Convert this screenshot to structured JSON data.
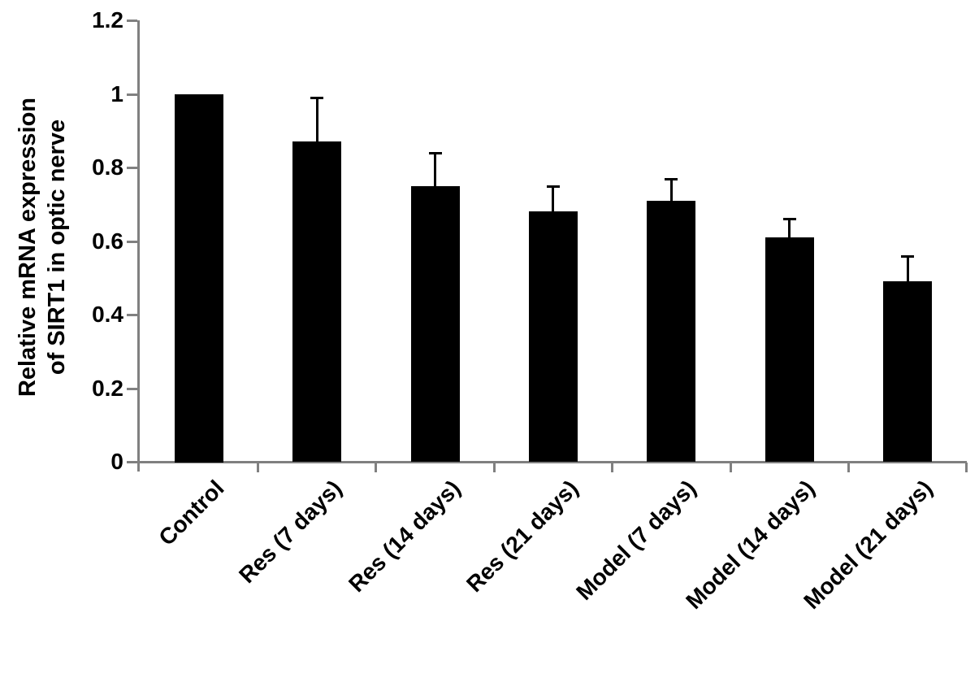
{
  "chart_data": {
    "type": "bar",
    "title": "",
    "ylabel_line1": "Relative mRNA expression",
    "ylabel_line2": "of SIRT1 in optic nerve",
    "xlabel": "",
    "categories": [
      "Control",
      "Res (7 days)",
      "Res (14 days)",
      "Res (21 days)",
      "Model (7 days)",
      "Model (14 days)",
      "Model (21 days)"
    ],
    "values": [
      1.0,
      0.87,
      0.75,
      0.68,
      0.71,
      0.61,
      0.49
    ],
    "errors_plus": [
      0,
      0.12,
      0.09,
      0.07,
      0.06,
      0.05,
      0.07
    ],
    "ylim": [
      0,
      1.2
    ],
    "yticks": [
      0,
      0.2,
      0.4,
      0.6,
      0.8,
      1,
      1.2
    ],
    "ytick_labels": [
      "0",
      "0.2",
      "0.4",
      "0.6",
      "0.8",
      "1",
      "1.2"
    ],
    "grid": false,
    "legend": null,
    "bar_color": "#000000",
    "error_color": "#000000",
    "axis_color": "#808080",
    "text_color": "#000000"
  }
}
